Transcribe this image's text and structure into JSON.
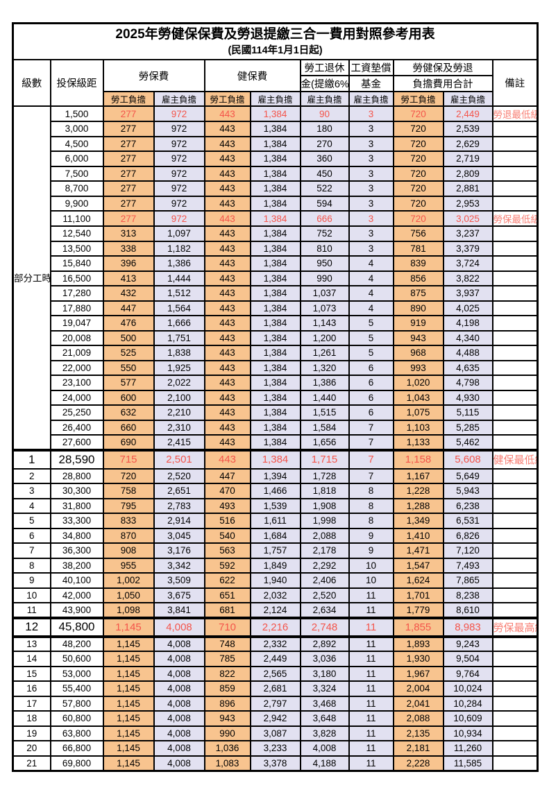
{
  "title": "2025年勞健保保費及勞退提繳三合一費用對照參考用表",
  "subtitle": "(民國114年1月1日起)",
  "colors": {
    "employee_col_bg": "#F8C48F",
    "employer_col_bg": "#E2E1F1",
    "highlight_text": "#F4544A",
    "remark_text": "#F87F74",
    "grid": "#000000"
  },
  "header": {
    "level": "級數",
    "bracket": "投保級距",
    "labor_ins": "勞保費",
    "health_ins": "健保費",
    "pension_line1": "勞工退休",
    "pension_line2": "金(提繳6%)",
    "fund_line1": "工資墊償",
    "fund_line2": "基金",
    "total_line1": "勞健保及勞退",
    "total_line2": "負擔費用合計",
    "remarks": "備註",
    "employee": "勞工負擔",
    "employer": "雇主負擔"
  },
  "table": {
    "group_label": "部分工時",
    "columns": [
      "級數",
      "投保級距",
      "勞保費-勞工負擔",
      "勞保費-雇主負擔",
      "健保費-勞工負擔",
      "健保費-雇主負擔",
      "勞工退休金(提繳6%)-雇主負擔",
      "工資墊償基金-雇主負擔",
      "勞健保及勞退負擔費用合計-勞工負擔",
      "勞健保及勞退負擔費用合計-雇主負擔",
      "備註"
    ],
    "rows": [
      {
        "level": null,
        "bracket": "1,500",
        "v": [
          "277",
          "972",
          "443",
          "1,384",
          "90",
          "3",
          "720",
          "2,449"
        ],
        "remark": "勞退最低級距",
        "hl": true
      },
      {
        "level": null,
        "bracket": "3,000",
        "v": [
          "277",
          "972",
          "443",
          "1,384",
          "180",
          "3",
          "720",
          "2,539"
        ]
      },
      {
        "level": null,
        "bracket": "4,500",
        "v": [
          "277",
          "972",
          "443",
          "1,384",
          "270",
          "3",
          "720",
          "2,629"
        ]
      },
      {
        "level": null,
        "bracket": "6,000",
        "v": [
          "277",
          "972",
          "443",
          "1,384",
          "360",
          "3",
          "720",
          "2,719"
        ]
      },
      {
        "level": null,
        "bracket": "7,500",
        "v": [
          "277",
          "972",
          "443",
          "1,384",
          "450",
          "3",
          "720",
          "2,809"
        ]
      },
      {
        "level": null,
        "bracket": "8,700",
        "v": [
          "277",
          "972",
          "443",
          "1,384",
          "522",
          "3",
          "720",
          "2,881"
        ]
      },
      {
        "level": null,
        "bracket": "9,900",
        "v": [
          "277",
          "972",
          "443",
          "1,384",
          "594",
          "3",
          "720",
          "2,953"
        ]
      },
      {
        "level": null,
        "bracket": "11,100",
        "v": [
          "277",
          "972",
          "443",
          "1,384",
          "666",
          "3",
          "720",
          "3,025"
        ],
        "remark": "勞保最低級距",
        "hl": true
      },
      {
        "level": null,
        "bracket": "12,540",
        "v": [
          "313",
          "1,097",
          "443",
          "1,384",
          "752",
          "3",
          "756",
          "3,237"
        ]
      },
      {
        "level": null,
        "bracket": "13,500",
        "v": [
          "338",
          "1,182",
          "443",
          "1,384",
          "810",
          "3",
          "781",
          "3,379"
        ]
      },
      {
        "level": null,
        "bracket": "15,840",
        "v": [
          "396",
          "1,386",
          "443",
          "1,384",
          "950",
          "4",
          "839",
          "3,724"
        ]
      },
      {
        "level": null,
        "bracket": "16,500",
        "v": [
          "413",
          "1,444",
          "443",
          "1,384",
          "990",
          "4",
          "856",
          "3,822"
        ]
      },
      {
        "level": null,
        "bracket": "17,280",
        "v": [
          "432",
          "1,512",
          "443",
          "1,384",
          "1,037",
          "4",
          "875",
          "3,937"
        ]
      },
      {
        "level": null,
        "bracket": "17,880",
        "v": [
          "447",
          "1,564",
          "443",
          "1,384",
          "1,073",
          "4",
          "890",
          "4,025"
        ]
      },
      {
        "level": null,
        "bracket": "19,047",
        "v": [
          "476",
          "1,666",
          "443",
          "1,384",
          "1,143",
          "5",
          "919",
          "4,198"
        ]
      },
      {
        "level": null,
        "bracket": "20,008",
        "v": [
          "500",
          "1,751",
          "443",
          "1,384",
          "1,200",
          "5",
          "943",
          "4,340"
        ]
      },
      {
        "level": null,
        "bracket": "21,009",
        "v": [
          "525",
          "1,838",
          "443",
          "1,384",
          "1,261",
          "5",
          "968",
          "4,488"
        ]
      },
      {
        "level": null,
        "bracket": "22,000",
        "v": [
          "550",
          "1,925",
          "443",
          "1,384",
          "1,320",
          "6",
          "993",
          "4,635"
        ]
      },
      {
        "level": null,
        "bracket": "23,100",
        "v": [
          "577",
          "2,022",
          "443",
          "1,384",
          "1,386",
          "6",
          "1,020",
          "4,798"
        ]
      },
      {
        "level": null,
        "bracket": "24,000",
        "v": [
          "600",
          "2,100",
          "443",
          "1,384",
          "1,440",
          "6",
          "1,043",
          "4,930"
        ]
      },
      {
        "level": null,
        "bracket": "25,250",
        "v": [
          "632",
          "2,210",
          "443",
          "1,384",
          "1,515",
          "6",
          "1,075",
          "5,115"
        ]
      },
      {
        "level": null,
        "bracket": "26,400",
        "v": [
          "660",
          "2,310",
          "443",
          "1,384",
          "1,584",
          "7",
          "1,103",
          "5,285"
        ]
      },
      {
        "level": null,
        "bracket": "27,600",
        "v": [
          "690",
          "2,415",
          "443",
          "1,384",
          "1,656",
          "7",
          "1,133",
          "5,462"
        ]
      },
      {
        "level": "1",
        "bracket": "28,590",
        "v": [
          "715",
          "2,501",
          "443",
          "1,384",
          "1,715",
          "7",
          "1,158",
          "5,608"
        ],
        "remark": "健保最低級距",
        "hl": true,
        "big": true,
        "tt": true
      },
      {
        "level": "2",
        "bracket": "28,800",
        "v": [
          "720",
          "2,520",
          "447",
          "1,394",
          "1,728",
          "7",
          "1,167",
          "5,649"
        ]
      },
      {
        "level": "3",
        "bracket": "30,300",
        "v": [
          "758",
          "2,651",
          "470",
          "1,466",
          "1,818",
          "8",
          "1,228",
          "5,943"
        ]
      },
      {
        "level": "4",
        "bracket": "31,800",
        "v": [
          "795",
          "2,783",
          "493",
          "1,539",
          "1,908",
          "8",
          "1,288",
          "6,238"
        ]
      },
      {
        "level": "5",
        "bracket": "33,300",
        "v": [
          "833",
          "2,914",
          "516",
          "1,611",
          "1,998",
          "8",
          "1,349",
          "6,531"
        ]
      },
      {
        "level": "6",
        "bracket": "34,800",
        "v": [
          "870",
          "3,045",
          "540",
          "1,684",
          "2,088",
          "9",
          "1,410",
          "6,826"
        ]
      },
      {
        "level": "7",
        "bracket": "36,300",
        "v": [
          "908",
          "3,176",
          "563",
          "1,757",
          "2,178",
          "9",
          "1,471",
          "7,120"
        ]
      },
      {
        "level": "8",
        "bracket": "38,200",
        "v": [
          "955",
          "3,342",
          "592",
          "1,849",
          "2,292",
          "10",
          "1,547",
          "7,493"
        ]
      },
      {
        "level": "9",
        "bracket": "40,100",
        "v": [
          "1,002",
          "3,509",
          "622",
          "1,940",
          "2,406",
          "10",
          "1,624",
          "7,865"
        ]
      },
      {
        "level": "10",
        "bracket": "42,000",
        "v": [
          "1,050",
          "3,675",
          "651",
          "2,032",
          "2,520",
          "11",
          "1,701",
          "8,238"
        ]
      },
      {
        "level": "11",
        "bracket": "43,900",
        "v": [
          "1,098",
          "3,841",
          "681",
          "2,124",
          "2,634",
          "11",
          "1,779",
          "8,610"
        ]
      },
      {
        "level": "12",
        "bracket": "45,800",
        "v": [
          "1,145",
          "4,008",
          "710",
          "2,216",
          "2,748",
          "11",
          "1,855",
          "8,983"
        ],
        "remark": "勞保最高級距",
        "hl": true,
        "big": true,
        "tt": true,
        "tb": true
      },
      {
        "level": "13",
        "bracket": "48,200",
        "v": [
          "1,145",
          "4,008",
          "748",
          "2,332",
          "2,892",
          "11",
          "1,893",
          "9,243"
        ]
      },
      {
        "level": "14",
        "bracket": "50,600",
        "v": [
          "1,145",
          "4,008",
          "785",
          "2,449",
          "3,036",
          "11",
          "1,930",
          "9,504"
        ]
      },
      {
        "level": "15",
        "bracket": "53,000",
        "v": [
          "1,145",
          "4,008",
          "822",
          "2,565",
          "3,180",
          "11",
          "1,967",
          "9,764"
        ]
      },
      {
        "level": "16",
        "bracket": "55,400",
        "v": [
          "1,145",
          "4,008",
          "859",
          "2,681",
          "3,324",
          "11",
          "2,004",
          "10,024"
        ]
      },
      {
        "level": "17",
        "bracket": "57,800",
        "v": [
          "1,145",
          "4,008",
          "896",
          "2,797",
          "3,468",
          "11",
          "2,041",
          "10,284"
        ]
      },
      {
        "level": "18",
        "bracket": "60,800",
        "v": [
          "1,145",
          "4,008",
          "943",
          "2,942",
          "3,648",
          "11",
          "2,088",
          "10,609"
        ]
      },
      {
        "level": "19",
        "bracket": "63,800",
        "v": [
          "1,145",
          "4,008",
          "990",
          "3,087",
          "3,828",
          "11",
          "2,135",
          "10,934"
        ]
      },
      {
        "level": "20",
        "bracket": "66,800",
        "v": [
          "1,145",
          "4,008",
          "1,036",
          "3,233",
          "4,008",
          "11",
          "2,181",
          "11,260"
        ]
      },
      {
        "level": "21",
        "bracket": "69,800",
        "v": [
          "1,145",
          "4,008",
          "1,083",
          "3,378",
          "4,188",
          "11",
          "2,228",
          "11,585"
        ]
      }
    ]
  }
}
